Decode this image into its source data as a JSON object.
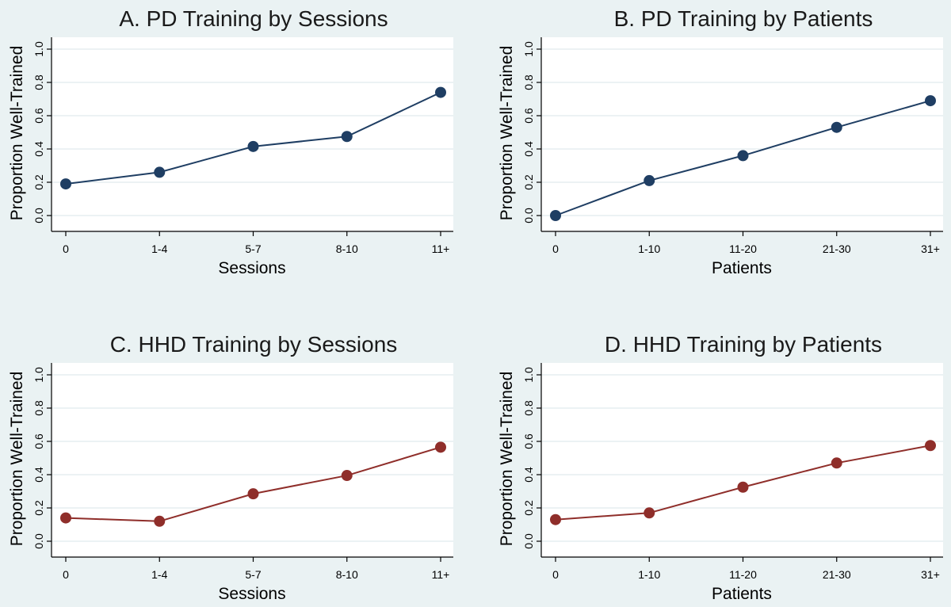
{
  "figure": {
    "background": "#eaf2f3"
  },
  "chart_data": [
    {
      "type": "line",
      "title": "A. PD Training by Sessions",
      "xlabel": "Sessions",
      "ylabel": "Proportion Well-Trained",
      "categories": [
        "0",
        "1-4",
        "5-7",
        "8-10",
        "11+"
      ],
      "values": [
        0.19,
        0.26,
        0.415,
        0.475,
        0.74
      ],
      "yticks": [
        "0.0",
        "0.2",
        "0.4",
        "0.6",
        "0.8",
        "1.0"
      ],
      "ylim": [
        0,
        1
      ],
      "grid": true,
      "color": "#1f3e63"
    },
    {
      "type": "line",
      "title": "B. PD Training by Patients",
      "xlabel": "Patients",
      "ylabel": "Proportion Well-Trained",
      "categories": [
        "0",
        "1-10",
        "11-20",
        "21-30",
        "31+"
      ],
      "values": [
        0.0,
        0.21,
        0.36,
        0.53,
        0.69
      ],
      "yticks": [
        "0.0",
        "0.2",
        "0.4",
        "0.6",
        "0.8",
        "1.0"
      ],
      "ylim": [
        0,
        1
      ],
      "grid": true,
      "color": "#1f3e63"
    },
    {
      "type": "line",
      "title": "C. HHD Training by Sessions",
      "xlabel": "Sessions",
      "ylabel": "Proportion Well-Trained",
      "categories": [
        "0",
        "1-4",
        "5-7",
        "8-10",
        "11+"
      ],
      "values": [
        0.14,
        0.12,
        0.285,
        0.395,
        0.565
      ],
      "yticks": [
        "0.0",
        "0.2",
        "0.4",
        "0.6",
        "0.8",
        "1.0"
      ],
      "ylim": [
        0,
        1
      ],
      "grid": true,
      "color": "#8f2e2a"
    },
    {
      "type": "line",
      "title": "D. HHD Training by Patients",
      "xlabel": "Patients",
      "ylabel": "Proportion Well-Trained",
      "categories": [
        "0",
        "1-10",
        "11-20",
        "21-30",
        "31+"
      ],
      "values": [
        0.13,
        0.17,
        0.325,
        0.47,
        0.575
      ],
      "yticks": [
        "0.0",
        "0.2",
        "0.4",
        "0.6",
        "0.8",
        "1.0"
      ],
      "ylim": [
        0,
        1
      ],
      "grid": true,
      "color": "#8f2e2a"
    }
  ]
}
